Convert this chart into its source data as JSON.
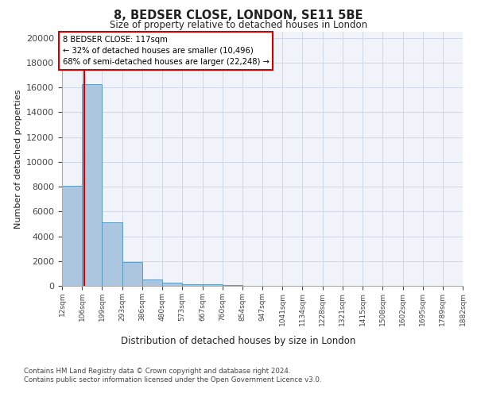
{
  "title1": "8, BEDSER CLOSE, LONDON, SE11 5BE",
  "title2": "Size of property relative to detached houses in London",
  "xlabel": "Distribution of detached houses by size in London",
  "ylabel": "Number of detached properties",
  "annotation_title": "8 BEDSER CLOSE: 117sqm",
  "annotation_line1": "← 32% of detached houses are smaller (10,496)",
  "annotation_line2": "68% of semi-detached houses are larger (22,248) →",
  "property_size": 117,
  "footer1": "Contains HM Land Registry data © Crown copyright and database right 2024.",
  "footer2": "Contains public sector information licensed under the Open Government Licence v3.0.",
  "bar_edges": [
    12,
    106,
    199,
    293,
    386,
    480,
    573,
    667,
    760,
    854,
    947,
    1041,
    1134,
    1228,
    1321,
    1415,
    1508,
    1602,
    1695,
    1789,
    1882
  ],
  "bar_heights": [
    8050,
    16300,
    5100,
    1900,
    500,
    250,
    150,
    100,
    75,
    0,
    0,
    0,
    0,
    0,
    0,
    0,
    0,
    0,
    0,
    0
  ],
  "bar_color": "#adc6e0",
  "bar_edge_color": "#5a9abf",
  "grid_color": "#d0d8e8",
  "vline_color": "#cc0000",
  "annotation_box_color": "#cc0000",
  "ylim": [
    0,
    20500
  ],
  "yticks": [
    0,
    2000,
    4000,
    6000,
    8000,
    10000,
    12000,
    14000,
    16000,
    18000,
    20000
  ],
  "bg_color": "#f0f4fa"
}
